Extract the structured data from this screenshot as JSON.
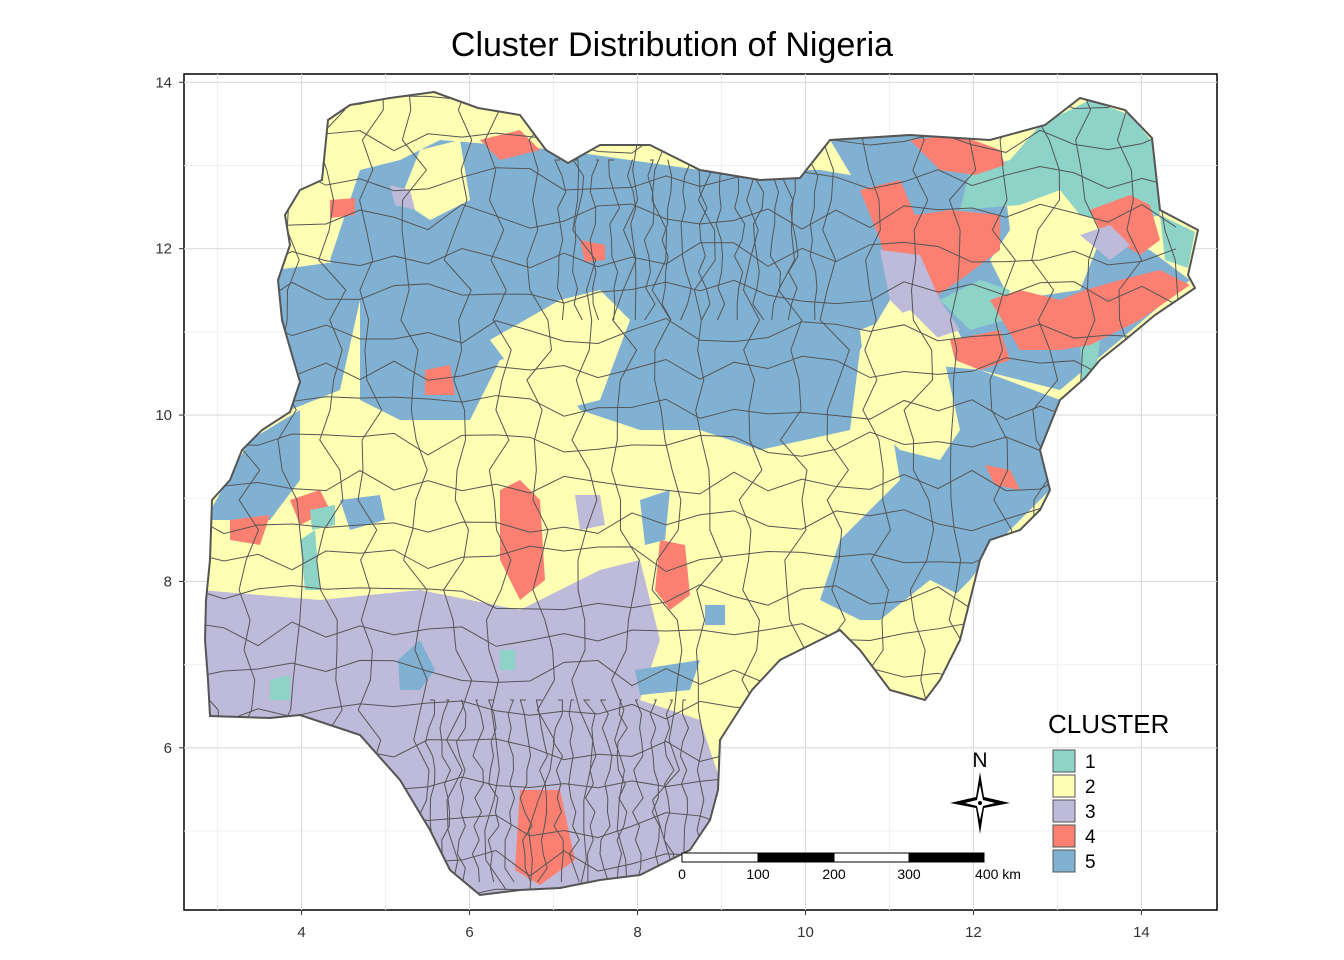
{
  "title": "Cluster Distribution of Nigeria",
  "chart_data": {
    "type": "choropleth-map",
    "x_ticks": [
      4,
      6,
      8,
      10,
      12,
      14
    ],
    "y_ticks": [
      6,
      8,
      10,
      12,
      14
    ],
    "xlim": [
      2.6,
      14.9
    ],
    "ylim": [
      4.05,
      14.1
    ],
    "grid": true,
    "legend": {
      "title": "CLUSTER",
      "position": "bottom-right",
      "items": [
        {
          "label": "1",
          "color": "#8dd3c7"
        },
        {
          "label": "2",
          "color": "#ffffb3"
        },
        {
          "label": "3",
          "color": "#bebada"
        },
        {
          "label": "4",
          "color": "#fb8072"
        },
        {
          "label": "5",
          "color": "#80b1d3"
        }
      ]
    },
    "north_arrow": "N",
    "scale_bar": {
      "labels": [
        "0",
        "100",
        "200",
        "300",
        "400 km"
      ]
    }
  }
}
